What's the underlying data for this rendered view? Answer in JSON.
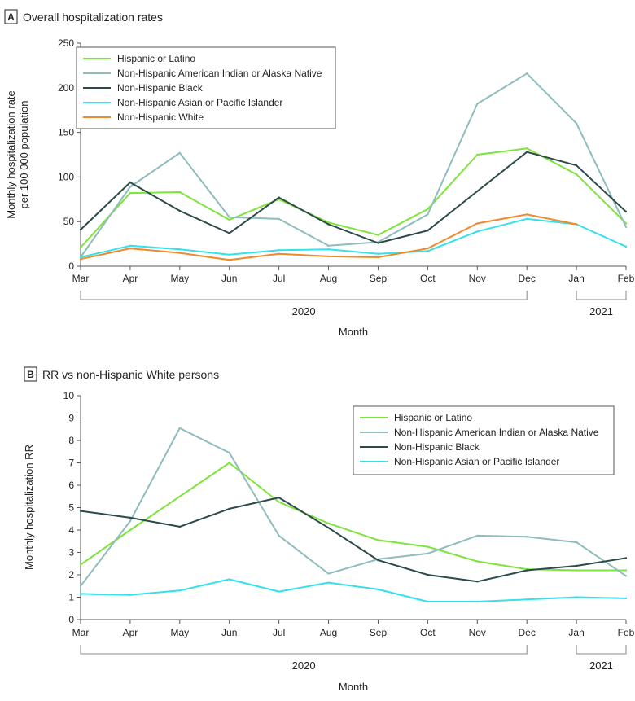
{
  "chart_data": [
    {
      "id": "A",
      "type": "line",
      "panel_letter": "A",
      "title": "Overall hospitalization rates",
      "ylabel_lines": [
        "Monthly hospitalization rate",
        "per 100 000 population"
      ],
      "xlabel": "Month",
      "categories": [
        "Mar",
        "Apr",
        "May",
        "Jun",
        "Jul",
        "Aug",
        "Sep",
        "Oct",
        "Nov",
        "Dec",
        "Jan",
        "Feb"
      ],
      "ylim": [
        0,
        250
      ],
      "yticks": [
        0,
        50,
        100,
        150,
        200,
        250
      ],
      "year_groups": [
        {
          "label": "2020",
          "from": "Mar",
          "to": "Dec"
        },
        {
          "label": "2021",
          "from": "Jan",
          "to": "Feb"
        }
      ],
      "legend_position": "top-left",
      "series": [
        {
          "name": "Hispanic or Latino",
          "color": "#7ee33a",
          "values": [
            21,
            82,
            83,
            52,
            75,
            49,
            35,
            64,
            125,
            132,
            103,
            48
          ]
        },
        {
          "name": "Non-Hispanic American Indian or Alaska Native",
          "color": "#8fbcbc",
          "values": [
            10,
            89,
            127,
            55,
            53,
            23,
            27,
            58,
            182,
            216,
            160,
            44
          ]
        },
        {
          "name": "Non-Hispanic Black",
          "color": "#2c4a4a",
          "values": [
            41,
            94,
            62,
            37,
            77,
            47,
            26,
            40,
            84,
            128,
            113,
            61
          ]
        },
        {
          "name": "Non-Hispanic Asian or Pacific Islander",
          "color": "#33e0ec",
          "values": [
            10,
            23,
            19,
            13,
            18,
            19,
            14,
            17,
            39,
            53,
            47,
            22
          ]
        },
        {
          "name": "Non-Hispanic White",
          "color": "#f0892a",
          "values": [
            8,
            20,
            15,
            7,
            14,
            11,
            10,
            20,
            48,
            58,
            47,
            null
          ]
        }
      ]
    },
    {
      "id": "B",
      "type": "line",
      "panel_letter": "B",
      "title": "RR vs non-Hispanic White persons",
      "ylabel_lines": [
        "Monthly hospitalization RR"
      ],
      "xlabel": "Month",
      "categories": [
        "Mar",
        "Apr",
        "May",
        "Jun",
        "Jul",
        "Aug",
        "Sep",
        "Oct",
        "Nov",
        "Dec",
        "Jan",
        "Feb"
      ],
      "ylim": [
        0,
        10
      ],
      "yticks": [
        0,
        1,
        2,
        3,
        4,
        5,
        6,
        7,
        8,
        9,
        10
      ],
      "year_groups": [
        {
          "label": "2020",
          "from": "Mar",
          "to": "Dec"
        },
        {
          "label": "2021",
          "from": "Jan",
          "to": "Feb"
        }
      ],
      "legend_position": "top-right",
      "series": [
        {
          "name": "Hispanic or Latino",
          "color": "#7ee33a",
          "values": [
            2.45,
            4.0,
            5.5,
            7.0,
            5.25,
            4.3,
            3.55,
            3.25,
            2.6,
            2.25,
            2.2,
            2.2
          ]
        },
        {
          "name": "Non-Hispanic American Indian or Alaska Native",
          "color": "#8fbcbc",
          "values": [
            1.5,
            4.4,
            8.55,
            7.45,
            3.75,
            2.05,
            2.7,
            2.95,
            3.75,
            3.7,
            3.45,
            1.95
          ]
        },
        {
          "name": "Non-Hispanic Black",
          "color": "#2c4a4a",
          "values": [
            4.85,
            4.55,
            4.15,
            4.95,
            5.45,
            4.1,
            2.65,
            2.0,
            1.7,
            2.2,
            2.4,
            2.75
          ]
        },
        {
          "name": "Non-Hispanic Asian or Pacific Islander",
          "color": "#33e0ec",
          "values": [
            1.15,
            1.1,
            1.3,
            1.8,
            1.25,
            1.65,
            1.35,
            0.8,
            0.8,
            0.9,
            1.0,
            0.95
          ]
        }
      ]
    }
  ]
}
